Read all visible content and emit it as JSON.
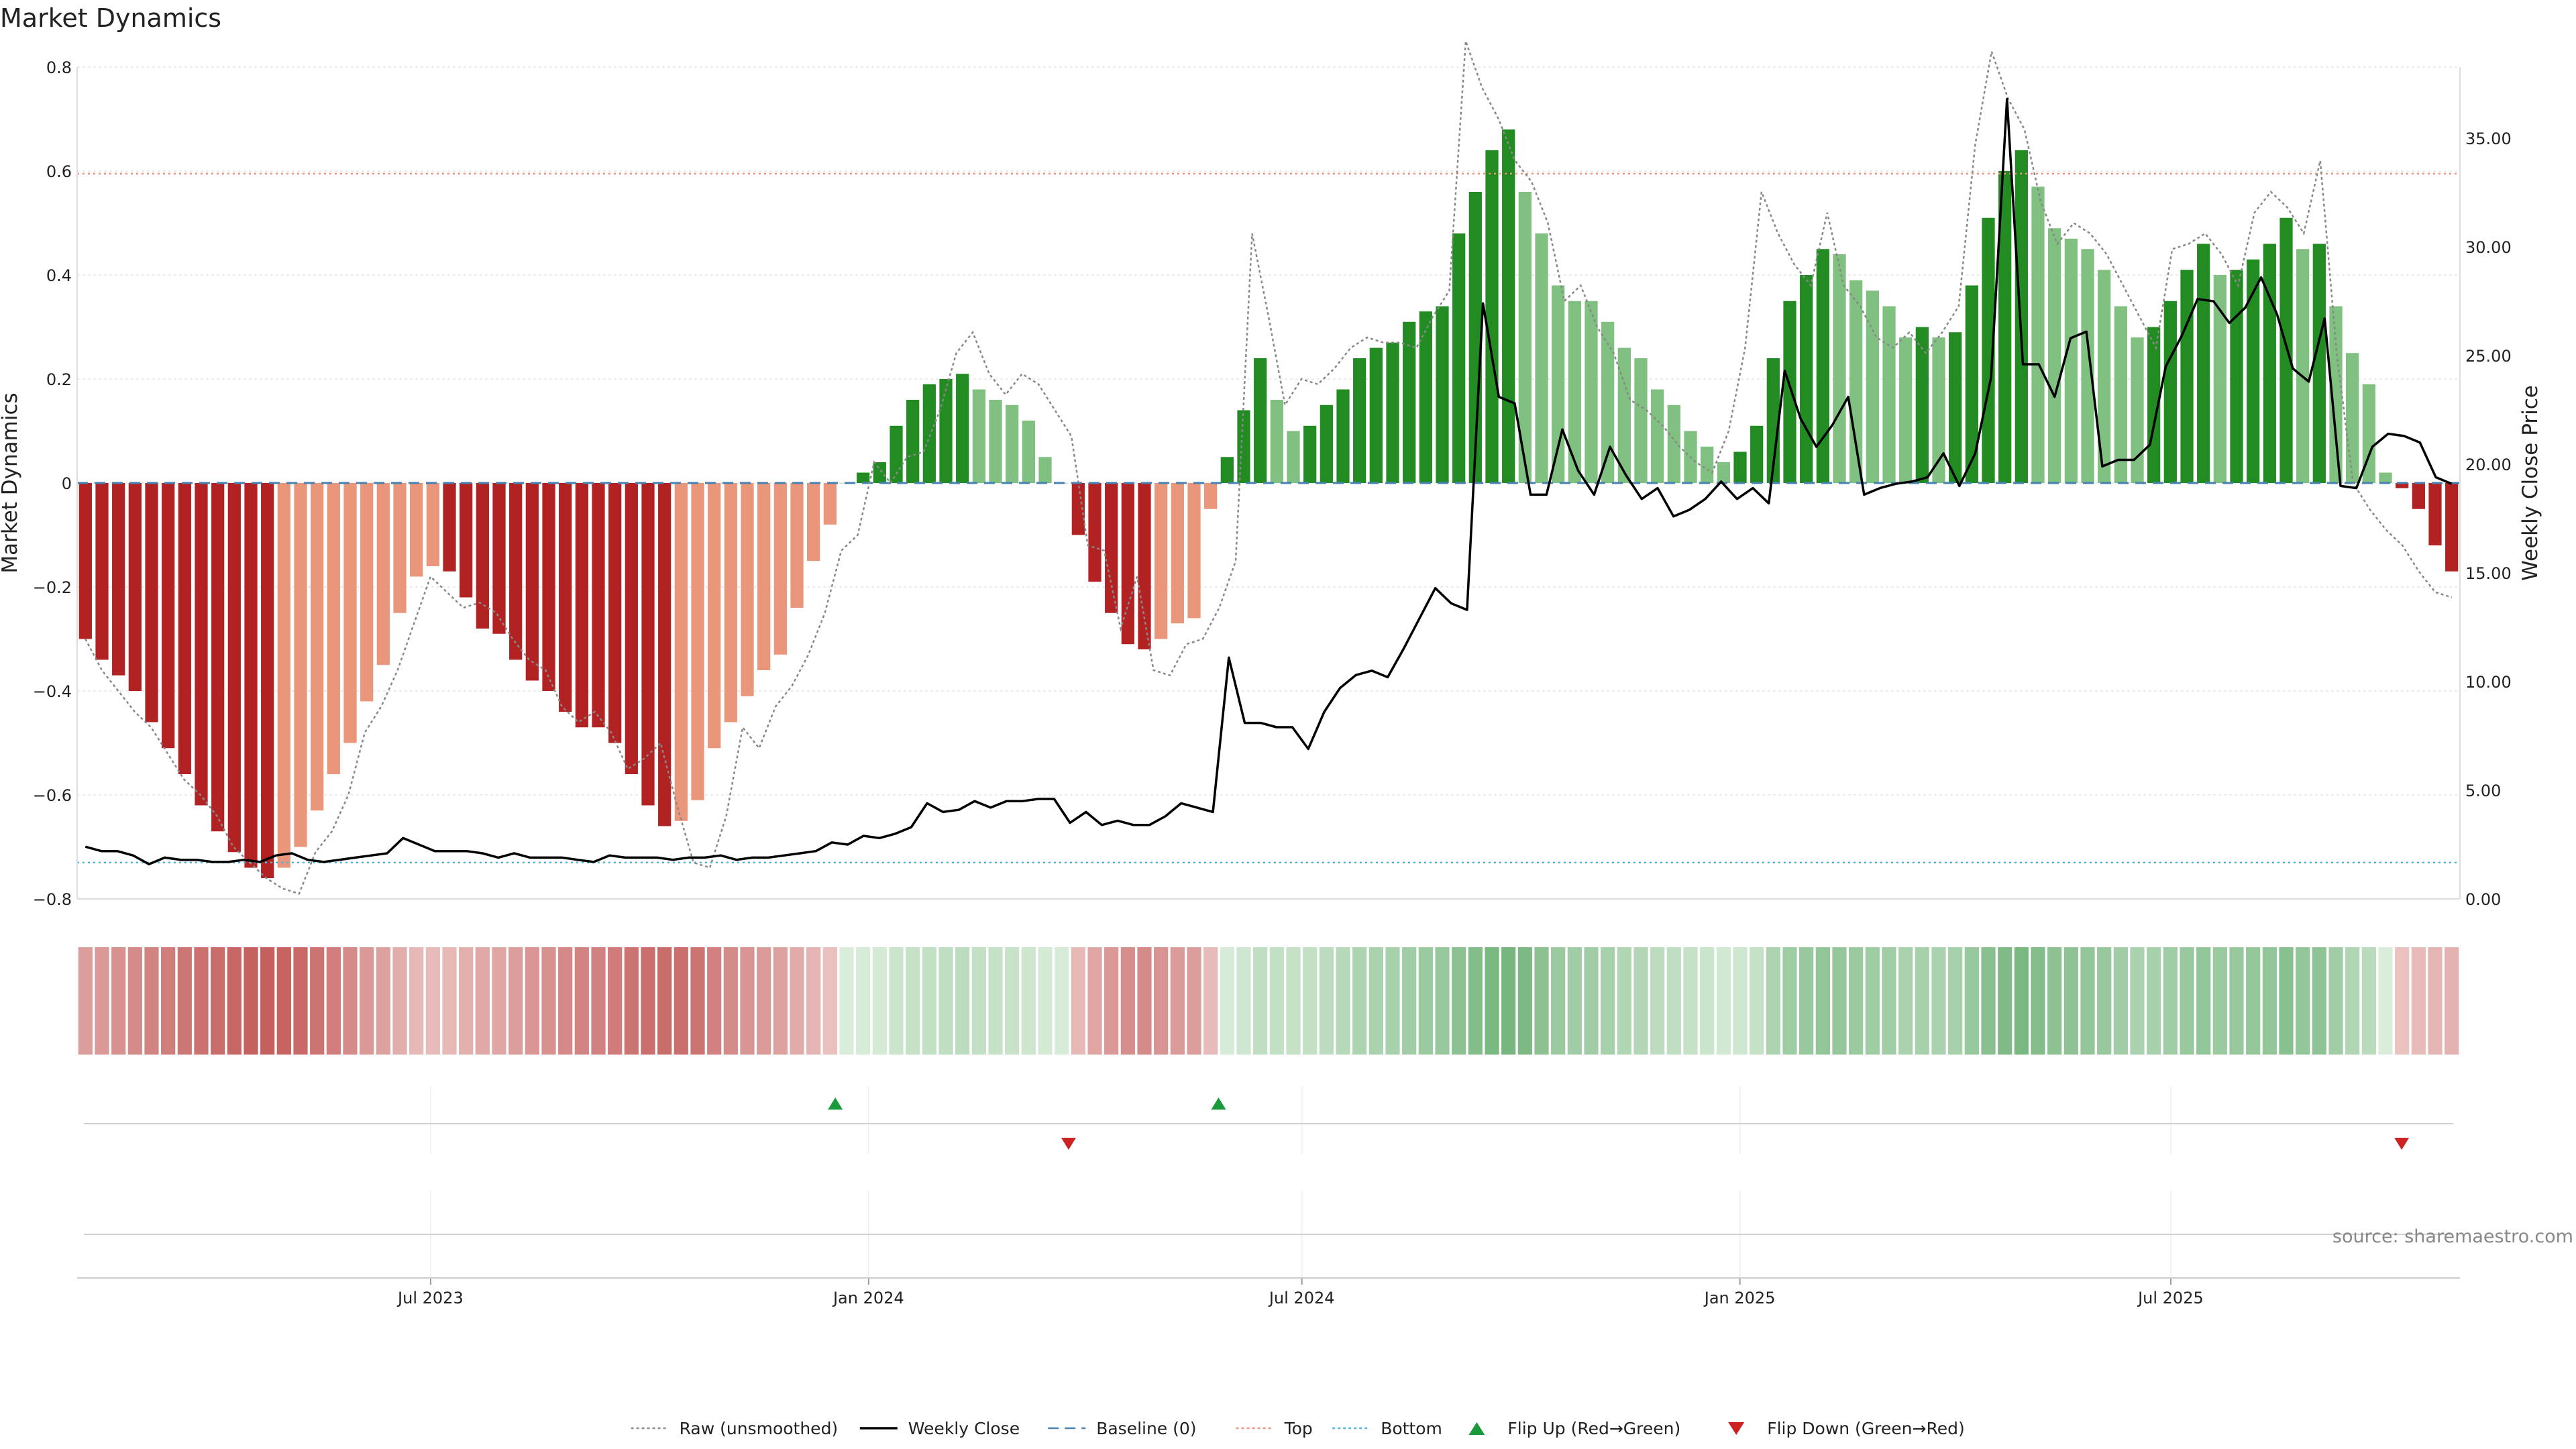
{
  "chart_data": {
    "type": "bar",
    "title": "Market Dynamics",
    "source": "source: sharemaestro.com",
    "y_left": {
      "label": "Market Dynamics",
      "range": [
        -0.8,
        0.8
      ],
      "ticks": [
        0.8,
        0.6,
        0.4,
        0.2,
        0.0,
        -0.2,
        -0.4,
        -0.6,
        -0.8
      ],
      "tick_labels": [
        "0.8",
        "0.6",
        "0.4",
        "0.2",
        "0",
        "−0.2",
        "−0.4",
        "−0.6",
        "−0.8"
      ]
    },
    "y_right": {
      "label": "Weekly Close Price",
      "range": [
        0,
        38.5
      ],
      "ticks": [
        35,
        30,
        25,
        20,
        15,
        10,
        5,
        0
      ],
      "tick_labels": [
        "35.00",
        "30.00",
        "25.00",
        "20.00",
        "15.00",
        "10.00",
        "5.00",
        "0.00"
      ]
    },
    "x_axis": {
      "start": "2023-02-06",
      "end": "2025-10-27",
      "ticks": [
        "2023-07-01",
        "2024-01-01",
        "2024-07-01",
        "2025-01-01",
        "2025-07-01"
      ],
      "tick_labels": [
        "Jul 2023",
        "Jan 2024",
        "Jul 2024",
        "Jan 2025",
        "Jul 2025"
      ]
    },
    "reference_lines": {
      "baseline": 0,
      "top": 0.595,
      "bottom": -0.73
    },
    "colors": {
      "strong_negative": "#b22222",
      "weak_negative": "#e9967a",
      "strong_positive": "#228b22",
      "weak_positive": "#80c080",
      "close": "#000000",
      "raw": "#888888",
      "baseline": "#4682b4",
      "top": "#e9967a",
      "bottom": "#4db8d8",
      "flip_up": "#1a9a3a",
      "flip_down": "#cc2222"
    },
    "legend": {
      "placement": "bottom-center",
      "entries": [
        {
          "label": "Raw (unsmoothed)",
          "style": "dotted",
          "color": "#888888"
        },
        {
          "label": "Weekly Close",
          "style": "solid",
          "color": "#000000"
        },
        {
          "label": "Baseline (0)",
          "style": "dashed",
          "color": "#4682b4"
        },
        {
          "label": "Top",
          "style": "dotted",
          "color": "#e9967a"
        },
        {
          "label": "Bottom",
          "style": "dotted",
          "color": "#4db8d8"
        },
        {
          "label": "Flip Up (Red→Green)",
          "style": "tri-up",
          "color": "#1a9a3a"
        },
        {
          "label": "Flip Down (Green→Red)",
          "style": "tri-down",
          "color": "#cc2222"
        }
      ]
    },
    "flips_up": [
      "2023-12-18",
      "2024-05-27"
    ],
    "flips_down": [
      "2024-03-25",
      "2025-10-06"
    ],
    "bars": [
      [
        -0.3,
        "s"
      ],
      [
        -0.34,
        "s"
      ],
      [
        -0.37,
        "s"
      ],
      [
        -0.4,
        "s"
      ],
      [
        -0.46,
        "s"
      ],
      [
        -0.51,
        "s"
      ],
      [
        -0.56,
        "s"
      ],
      [
        -0.62,
        "s"
      ],
      [
        -0.67,
        "s"
      ],
      [
        -0.71,
        "s"
      ],
      [
        -0.74,
        "s"
      ],
      [
        -0.76,
        "s"
      ],
      [
        -0.74,
        "w"
      ],
      [
        -0.7,
        "w"
      ],
      [
        -0.63,
        "w"
      ],
      [
        -0.56,
        "w"
      ],
      [
        -0.5,
        "w"
      ],
      [
        -0.42,
        "w"
      ],
      [
        -0.35,
        "w"
      ],
      [
        -0.25,
        "w"
      ],
      [
        -0.18,
        "w"
      ],
      [
        -0.16,
        "w"
      ],
      [
        -0.17,
        "s"
      ],
      [
        -0.22,
        "s"
      ],
      [
        -0.28,
        "s"
      ],
      [
        -0.29,
        "s"
      ],
      [
        -0.34,
        "s"
      ],
      [
        -0.38,
        "s"
      ],
      [
        -0.4,
        "s"
      ],
      [
        -0.44,
        "s"
      ],
      [
        -0.47,
        "s"
      ],
      [
        -0.47,
        "s"
      ],
      [
        -0.5,
        "s"
      ],
      [
        -0.56,
        "s"
      ],
      [
        -0.62,
        "s"
      ],
      [
        -0.66,
        "s"
      ],
      [
        -0.65,
        "w"
      ],
      [
        -0.61,
        "w"
      ],
      [
        -0.51,
        "w"
      ],
      [
        -0.46,
        "w"
      ],
      [
        -0.41,
        "w"
      ],
      [
        -0.36,
        "w"
      ],
      [
        -0.33,
        "w"
      ],
      [
        -0.24,
        "w"
      ],
      [
        -0.15,
        "w"
      ],
      [
        -0.08,
        "w"
      ],
      [
        0.0,
        "w"
      ],
      [
        0.02,
        "s"
      ],
      [
        0.04,
        "s"
      ],
      [
        0.11,
        "s"
      ],
      [
        0.16,
        "s"
      ],
      [
        0.19,
        "s"
      ],
      [
        0.2,
        "s"
      ],
      [
        0.21,
        "s"
      ],
      [
        0.18,
        "w"
      ],
      [
        0.16,
        "w"
      ],
      [
        0.15,
        "w"
      ],
      [
        0.12,
        "w"
      ],
      [
        0.05,
        "w"
      ],
      [
        0.0,
        "w"
      ],
      [
        -0.1,
        "s"
      ],
      [
        -0.19,
        "s"
      ],
      [
        -0.25,
        "s"
      ],
      [
        -0.31,
        "s"
      ],
      [
        -0.32,
        "s"
      ],
      [
        -0.3,
        "w"
      ],
      [
        -0.27,
        "w"
      ],
      [
        -0.26,
        "w"
      ],
      [
        -0.05,
        "w"
      ],
      [
        0.05,
        "s"
      ],
      [
        0.14,
        "s"
      ],
      [
        0.24,
        "s"
      ],
      [
        0.16,
        "w"
      ],
      [
        0.1,
        "w"
      ],
      [
        0.11,
        "s"
      ],
      [
        0.15,
        "s"
      ],
      [
        0.18,
        "s"
      ],
      [
        0.24,
        "s"
      ],
      [
        0.26,
        "s"
      ],
      [
        0.27,
        "s"
      ],
      [
        0.31,
        "s"
      ],
      [
        0.33,
        "s"
      ],
      [
        0.34,
        "s"
      ],
      [
        0.48,
        "s"
      ],
      [
        0.56,
        "s"
      ],
      [
        0.64,
        "s"
      ],
      [
        0.68,
        "s"
      ],
      [
        0.56,
        "w"
      ],
      [
        0.48,
        "w"
      ],
      [
        0.38,
        "w"
      ],
      [
        0.35,
        "w"
      ],
      [
        0.35,
        "w"
      ],
      [
        0.31,
        "w"
      ],
      [
        0.26,
        "w"
      ],
      [
        0.24,
        "w"
      ],
      [
        0.18,
        "w"
      ],
      [
        0.15,
        "w"
      ],
      [
        0.1,
        "w"
      ],
      [
        0.07,
        "w"
      ],
      [
        0.04,
        "w"
      ],
      [
        0.06,
        "s"
      ],
      [
        0.11,
        "s"
      ],
      [
        0.24,
        "s"
      ],
      [
        0.35,
        "s"
      ],
      [
        0.4,
        "s"
      ],
      [
        0.45,
        "s"
      ],
      [
        0.44,
        "w"
      ],
      [
        0.39,
        "w"
      ],
      [
        0.37,
        "w"
      ],
      [
        0.34,
        "w"
      ],
      [
        0.28,
        "w"
      ],
      [
        0.3,
        "s"
      ],
      [
        0.28,
        "w"
      ],
      [
        0.29,
        "s"
      ],
      [
        0.38,
        "s"
      ],
      [
        0.51,
        "s"
      ],
      [
        0.6,
        "s"
      ],
      [
        0.64,
        "s"
      ],
      [
        0.57,
        "w"
      ],
      [
        0.49,
        "w"
      ],
      [
        0.47,
        "w"
      ],
      [
        0.45,
        "w"
      ],
      [
        0.41,
        "w"
      ],
      [
        0.34,
        "w"
      ],
      [
        0.28,
        "w"
      ],
      [
        0.3,
        "s"
      ],
      [
        0.35,
        "s"
      ],
      [
        0.41,
        "s"
      ],
      [
        0.46,
        "s"
      ],
      [
        0.4,
        "w"
      ],
      [
        0.41,
        "s"
      ],
      [
        0.43,
        "s"
      ],
      [
        0.46,
        "s"
      ],
      [
        0.51,
        "s"
      ],
      [
        0.45,
        "w"
      ],
      [
        0.46,
        "s"
      ],
      [
        0.34,
        "w"
      ],
      [
        0.25,
        "w"
      ],
      [
        0.19,
        "w"
      ],
      [
        0.02,
        "w"
      ],
      [
        -0.01,
        "s"
      ],
      [
        -0.05,
        "s"
      ],
      [
        -0.12,
        "s"
      ],
      [
        -0.17,
        "s"
      ]
    ],
    "raw": [
      -0.3,
      -0.36,
      -0.4,
      -0.44,
      -0.47,
      -0.52,
      -0.57,
      -0.6,
      -0.64,
      -0.7,
      -0.73,
      -0.76,
      -0.78,
      -0.79,
      -0.71,
      -0.67,
      -0.6,
      -0.48,
      -0.43,
      -0.36,
      -0.27,
      -0.18,
      -0.21,
      -0.24,
      -0.23,
      -0.25,
      -0.3,
      -0.34,
      -0.36,
      -0.43,
      -0.46,
      -0.44,
      -0.48,
      -0.55,
      -0.53,
      -0.5,
      -0.62,
      -0.73,
      -0.74,
      -0.64,
      -0.47,
      -0.51,
      -0.43,
      -0.39,
      -0.33,
      -0.25,
      -0.13,
      -0.1,
      0.04,
      0.0,
      0.05,
      0.06,
      0.14,
      0.25,
      0.29,
      0.21,
      0.17,
      0.21,
      0.19,
      0.14,
      0.09,
      -0.12,
      -0.13,
      -0.28,
      -0.18,
      -0.36,
      -0.37,
      -0.31,
      -0.3,
      -0.24,
      -0.15,
      0.48,
      0.32,
      0.15,
      0.2,
      0.19,
      0.22,
      0.26,
      0.28,
      0.27,
      0.27,
      0.26,
      0.32,
      0.37,
      0.85,
      0.76,
      0.7,
      0.62,
      0.58,
      0.5,
      0.35,
      0.38,
      0.3,
      0.25,
      0.16,
      0.14,
      0.11,
      0.07,
      0.04,
      0.02,
      0.1,
      0.26,
      0.56,
      0.48,
      0.42,
      0.38,
      0.52,
      0.38,
      0.34,
      0.28,
      0.26,
      0.29,
      0.25,
      0.29,
      0.34,
      0.65,
      0.83,
      0.74,
      0.68,
      0.54,
      0.46,
      0.5,
      0.48,
      0.44,
      0.38,
      0.32,
      0.26,
      0.45,
      0.46,
      0.48,
      0.44,
      0.38,
      0.52,
      0.56,
      0.53,
      0.48,
      0.62,
      0.25,
      0.0,
      -0.05,
      -0.09,
      -0.12,
      -0.17,
      -0.21,
      -0.22
    ],
    "close": [
      2.4,
      2.2,
      2.2,
      2.0,
      1.6,
      1.9,
      1.8,
      1.8,
      1.7,
      1.7,
      1.8,
      1.7,
      2.0,
      2.1,
      1.8,
      1.7,
      1.8,
      1.9,
      2.0,
      2.1,
      2.8,
      2.5,
      2.2,
      2.2,
      2.2,
      2.1,
      1.9,
      2.1,
      1.9,
      1.9,
      1.9,
      1.8,
      1.7,
      2.0,
      1.9,
      1.9,
      1.9,
      1.8,
      1.9,
      1.9,
      2.0,
      1.8,
      1.9,
      1.9,
      2.0,
      2.1,
      2.2,
      2.6,
      2.5,
      2.9,
      2.8,
      3.0,
      3.3,
      4.4,
      4.0,
      4.1,
      4.5,
      4.2,
      4.5,
      4.5,
      4.6,
      4.6,
      3.5,
      4.0,
      3.4,
      3.6,
      3.4,
      3.4,
      3.8,
      4.4,
      4.2,
      4.0,
      11.1,
      8.1,
      8.1,
      7.9,
      7.9,
      6.9,
      8.6,
      9.7,
      10.3,
      10.5,
      10.2,
      11.5,
      12.9,
      14.3,
      13.6,
      13.3,
      27.4,
      23.1,
      22.8,
      18.6,
      18.6,
      21.6,
      19.7,
      18.6,
      20.8,
      19.5,
      18.4,
      18.9,
      17.6,
      17.9,
      18.4,
      19.2,
      18.4,
      18.9,
      18.2,
      24.3,
      22.1,
      20.8,
      21.8,
      23.1,
      18.6,
      18.9,
      19.1,
      19.2,
      19.4,
      20.5,
      19.0,
      20.5,
      24.0,
      36.8,
      24.6,
      24.6,
      23.1,
      25.8,
      26.1,
      19.9,
      20.2,
      20.2,
      20.9,
      24.5,
      25.9,
      27.6,
      27.5,
      26.5,
      27.2,
      28.6,
      26.9,
      24.4,
      23.8,
      26.7,
      19.0,
      18.9,
      20.8,
      21.4,
      21.3,
      21.0,
      19.4,
      19.1
    ],
    "heat_strip": [
      -0.4,
      -0.45,
      -0.5,
      -0.55,
      -0.6,
      -0.65,
      -0.7,
      -0.75,
      -0.78,
      -0.82,
      -0.86,
      -0.88,
      -0.85,
      -0.8,
      -0.72,
      -0.65,
      -0.55,
      -0.45,
      -0.38,
      -0.28,
      -0.2,
      -0.18,
      -0.2,
      -0.26,
      -0.32,
      -0.34,
      -0.4,
      -0.46,
      -0.5,
      -0.56,
      -0.6,
      -0.62,
      -0.66,
      -0.72,
      -0.76,
      -0.78,
      -0.76,
      -0.72,
      -0.62,
      -0.55,
      -0.48,
      -0.42,
      -0.38,
      -0.3,
      -0.22,
      -0.14,
      0.08,
      0.1,
      0.12,
      0.18,
      0.22,
      0.24,
      0.26,
      0.28,
      0.24,
      0.22,
      0.2,
      0.17,
      0.12,
      0.1,
      -0.2,
      -0.34,
      -0.44,
      -0.52,
      -0.55,
      -0.48,
      -0.42,
      -0.4,
      -0.18,
      0.1,
      0.16,
      0.26,
      0.24,
      0.22,
      0.24,
      0.28,
      0.32,
      0.38,
      0.4,
      0.42,
      0.46,
      0.5,
      0.52,
      0.6,
      0.66,
      0.72,
      0.74,
      0.7,
      0.6,
      0.5,
      0.46,
      0.46,
      0.42,
      0.36,
      0.34,
      0.28,
      0.26,
      0.22,
      0.18,
      0.14,
      0.16,
      0.22,
      0.38,
      0.48,
      0.52,
      0.56,
      0.54,
      0.5,
      0.48,
      0.46,
      0.4,
      0.42,
      0.4,
      0.42,
      0.52,
      0.62,
      0.68,
      0.72,
      0.66,
      0.6,
      0.58,
      0.56,
      0.52,
      0.46,
      0.4,
      0.42,
      0.46,
      0.52,
      0.56,
      0.5,
      0.52,
      0.54,
      0.56,
      0.62,
      0.56,
      0.58,
      0.46,
      0.36,
      0.3,
      0.08,
      -0.12,
      -0.18,
      -0.22,
      -0.24
    ]
  }
}
